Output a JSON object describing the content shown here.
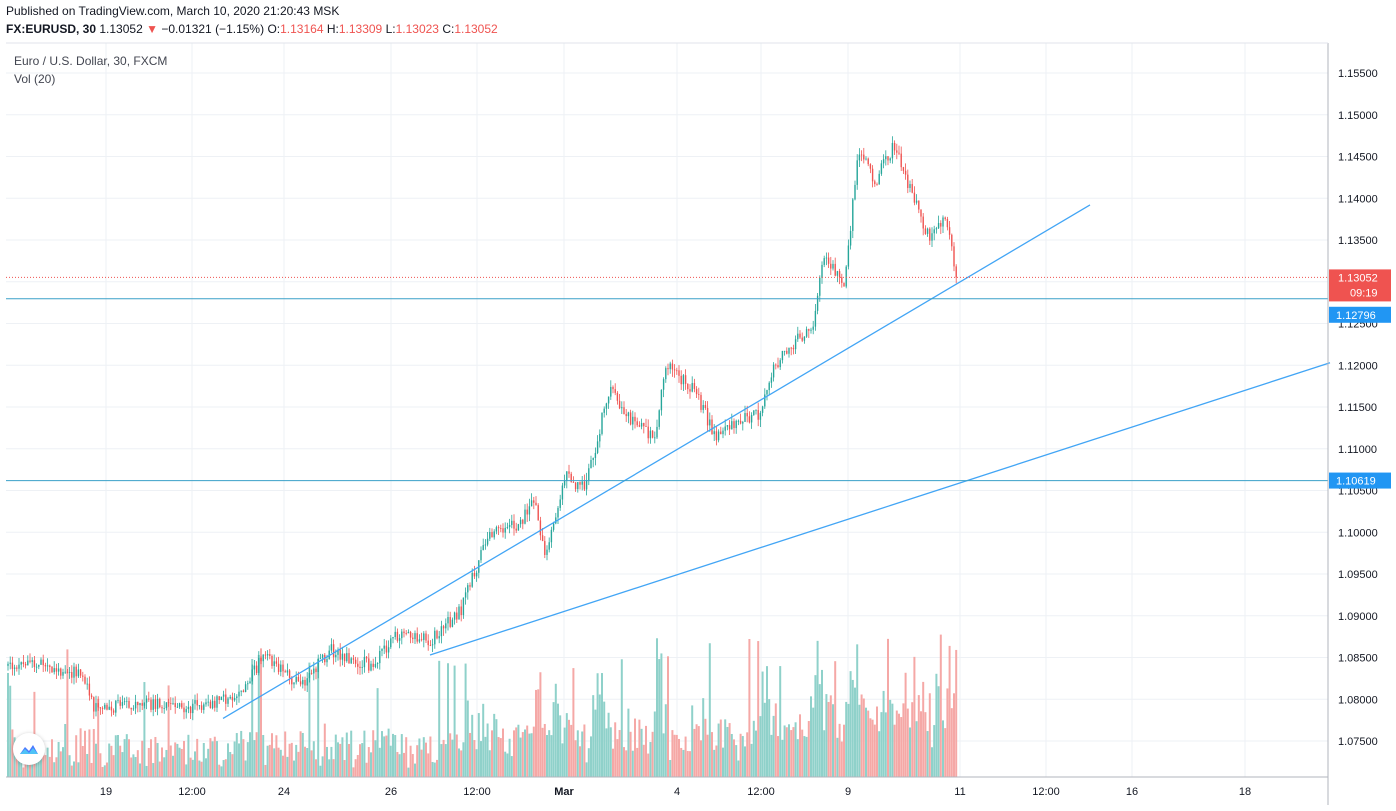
{
  "header": {
    "published": "Published on TradingView.com, March 10, 2020 21:20:43 MSK",
    "symbol": "FX:EURUSD, 30",
    "last": "1.13052",
    "change_arrow": "▼",
    "change": "−0.01321 (−1.15%)",
    "o_label": "O:",
    "o_value": "1.13164",
    "h_label": "H:",
    "h_value": "1.13309",
    "l_label": "L:",
    "l_value": "1.13023",
    "c_label": "C:",
    "c_value": "1.13052"
  },
  "legend": {
    "series": "Euro / U.S. Dollar, 30, FXCM",
    "volume": "Vol (20)"
  },
  "price_tags": {
    "last_price": "1.13052",
    "countdown": "09:19",
    "hline_upper": "1.12796",
    "hline_lower": "1.10619"
  },
  "colors": {
    "up": "#26a69a",
    "down": "#ef5350",
    "up_vol": "#8fd1ca",
    "down_vol": "#f5a8a6",
    "trendline": "#42a5f5",
    "hline": "#3aa0c8",
    "last_price_line": "#ef5350",
    "grid": "#eef1f5"
  },
  "chart_data": {
    "type": "candlestick",
    "title": "Euro / U.S. Dollar, 30, FXCM",
    "x_ticks": [
      "19",
      "12:00",
      "24",
      "26",
      "12:00",
      "Mar",
      "4",
      "12:00",
      "9",
      "11",
      "12:00",
      "16",
      "18"
    ],
    "y_ticks": [
      "1.15500",
      "1.15000",
      "1.14500",
      "1.14000",
      "1.13500",
      "1.13000",
      "1.12500",
      "1.12000",
      "1.11500",
      "1.11000",
      "1.10500",
      "1.10000",
      "1.09500",
      "1.09000",
      "1.08500",
      "1.08000",
      "1.07500"
    ],
    "ylim": [
      1.0713,
      1.1585
    ],
    "price_path_anchors": [
      {
        "t": 8,
        "price": 1.084
      },
      {
        "t": 30,
        "price": 1.0845
      },
      {
        "t": 80,
        "price": 1.083
      },
      {
        "t": 95,
        "price": 1.079
      },
      {
        "t": 150,
        "price": 1.0795
      },
      {
        "t": 190,
        "price": 1.079
      },
      {
        "t": 240,
        "price": 1.0805
      },
      {
        "t": 265,
        "price": 1.0855
      },
      {
        "t": 300,
        "price": 1.0815
      },
      {
        "t": 330,
        "price": 1.086
      },
      {
        "t": 370,
        "price": 1.084
      },
      {
        "t": 400,
        "price": 1.088
      },
      {
        "t": 430,
        "price": 1.087
      },
      {
        "t": 460,
        "price": 1.0905
      },
      {
        "t": 490,
        "price": 1.1
      },
      {
        "t": 520,
        "price": 1.101
      },
      {
        "t": 535,
        "price": 1.1045
      },
      {
        "t": 545,
        "price": 1.0965
      },
      {
        "t": 565,
        "price": 1.107
      },
      {
        "t": 585,
        "price": 1.105
      },
      {
        "t": 610,
        "price": 1.1175
      },
      {
        "t": 630,
        "price": 1.1135
      },
      {
        "t": 655,
        "price": 1.111
      },
      {
        "t": 665,
        "price": 1.12
      },
      {
        "t": 695,
        "price": 1.117
      },
      {
        "t": 715,
        "price": 1.1115
      },
      {
        "t": 740,
        "price": 1.1135
      },
      {
        "t": 760,
        "price": 1.114
      },
      {
        "t": 775,
        "price": 1.12
      },
      {
        "t": 800,
        "price": 1.1235
      },
      {
        "t": 812,
        "price": 1.124
      },
      {
        "t": 825,
        "price": 1.1335
      },
      {
        "t": 845,
        "price": 1.1295
      },
      {
        "t": 858,
        "price": 1.146
      },
      {
        "t": 875,
        "price": 1.142
      },
      {
        "t": 895,
        "price": 1.1465
      },
      {
        "t": 915,
        "price": 1.1395
      },
      {
        "t": 930,
        "price": 1.135
      },
      {
        "t": 945,
        "price": 1.138
      },
      {
        "t": 957,
        "price": 1.1305
      }
    ],
    "trendlines": [
      {
        "x1_t": 223,
        "y1_price": 1.0777,
        "x2_t": 1090,
        "y2_price": 1.1392
      },
      {
        "x1_t": 430,
        "y1_price": 1.0853,
        "x2_t": 1330,
        "y2_price": 1.1203
      }
    ],
    "horizontal_lines": [
      1.12796,
      1.10619
    ],
    "last_price": 1.13052
  }
}
